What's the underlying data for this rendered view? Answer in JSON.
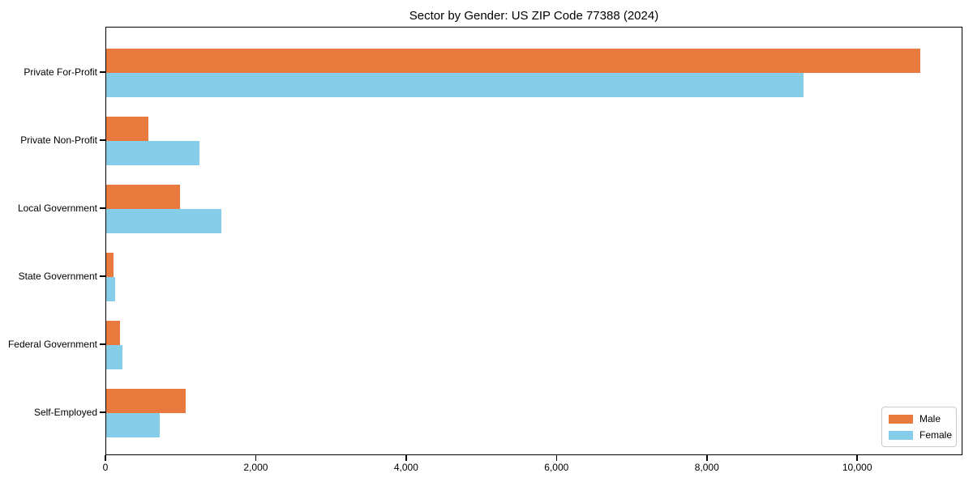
{
  "title": "Sector by Gender: US ZIP Code 77388 (2024)",
  "colors": {
    "male": "#e97a3d",
    "female": "#85cde8",
    "axis": "#000000",
    "legend_border": "#c9c9c9",
    "background": "#ffffff"
  },
  "chart_data": {
    "type": "bar",
    "orientation": "horizontal",
    "title": "Sector by Gender: US ZIP Code 77388 (2024)",
    "xlabel": "",
    "ylabel": "",
    "categories": [
      "Private For-Profit",
      "Private Non-Profit",
      "Local Government",
      "State Government",
      "Federal Government",
      "Self-Employed"
    ],
    "series": [
      {
        "name": "Male",
        "color": "#e97a3d",
        "values": [
          10830,
          565,
          985,
          100,
          180,
          1060
        ]
      },
      {
        "name": "Female",
        "color": "#85cde8",
        "values": [
          9270,
          1245,
          1530,
          120,
          220,
          715
        ]
      }
    ],
    "xlim": [
      0,
      11400
    ],
    "xticks": [
      0,
      2000,
      4000,
      6000,
      8000,
      10000
    ],
    "xtick_labels": [
      "0",
      "2,000",
      "4,000",
      "6,000",
      "8,000",
      "10,000"
    ],
    "grid": false,
    "legend_position": "lower right"
  },
  "legend": {
    "items": [
      {
        "label": "Male",
        "color": "#e97a3d"
      },
      {
        "label": "Female",
        "color": "#85cde8"
      }
    ]
  }
}
